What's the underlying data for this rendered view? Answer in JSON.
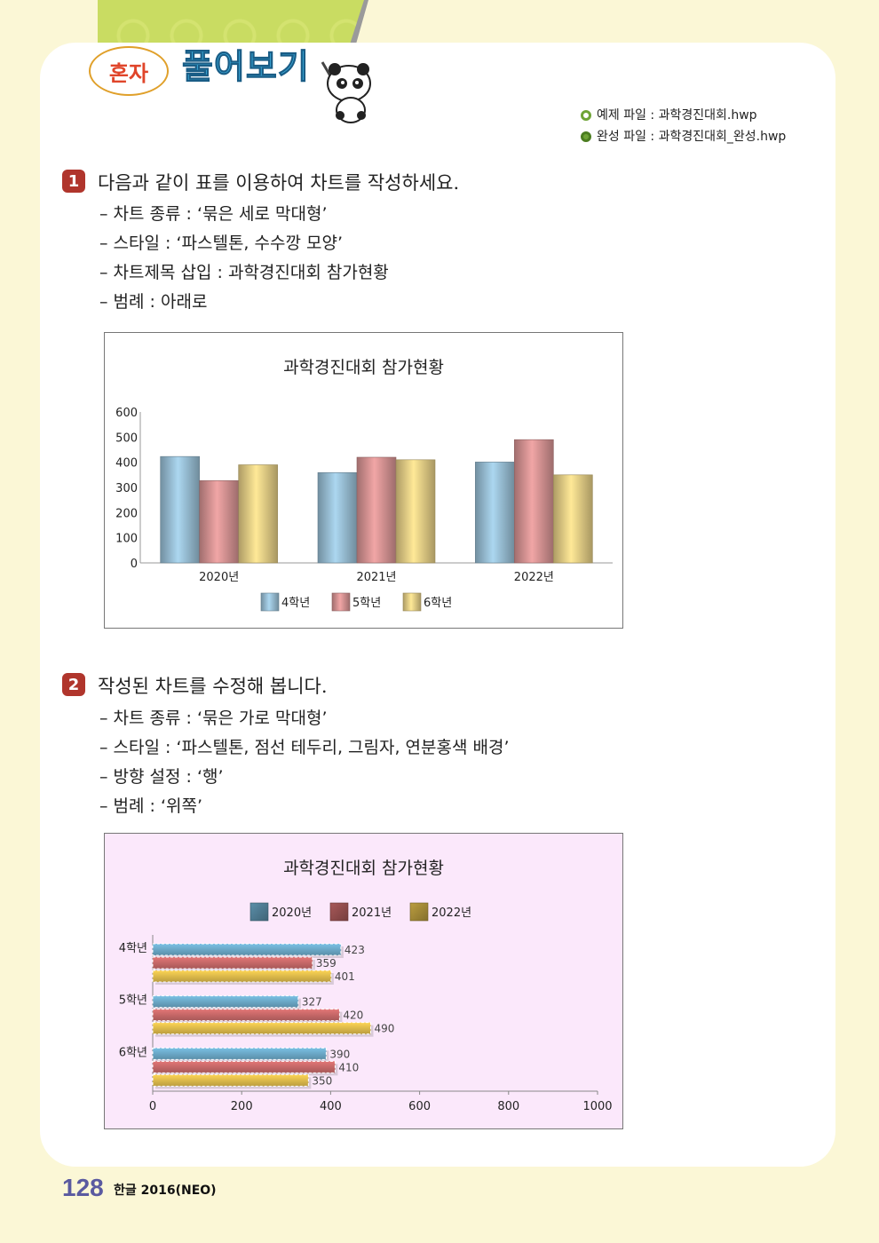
{
  "header": {
    "bubble": "혼자",
    "title": "풀어보기"
  },
  "files": [
    {
      "label": "예제 파일 : 과학경진대회.hwp",
      "icon": "circle-outline-icon"
    },
    {
      "label": "완성 파일 : 과학경진대회_완성.hwp",
      "icon": "circle-filled-icon"
    }
  ],
  "q1": {
    "number": "1",
    "text": "다음과 같이 표를 이용하여 차트를 작성하세요.",
    "items": [
      "– 차트 종류 : ‘묶은 세로 막대형’",
      "– 스타일 : ‘파스텔톤, 수수깡 모양’",
      "– 차트제목 삽입 : 과학경진대회 참가현황",
      "– 범례 : 아래로"
    ]
  },
  "q2": {
    "number": "2",
    "text": "작성된 차트를 수정해 봅니다.",
    "items": [
      "– 차트 종류 : ‘묶은 가로 막대형’",
      "– 스타일 : ‘파스텔톤, 점선 테두리, 그림자, 연분홍색 배경’",
      "– 방향 설정 : ‘행’",
      "– 범례 : ‘위쪽’"
    ]
  },
  "chart_data": [
    {
      "type": "bar",
      "orientation": "vertical",
      "title": "과학경진대회 참가현황",
      "categories": [
        "2020년",
        "2021년",
        "2022년"
      ],
      "series": [
        {
          "name": "4학년",
          "values": [
            423,
            359,
            401
          ],
          "color": "#8fb3c8"
        },
        {
          "name": "5학년",
          "values": [
            327,
            420,
            490
          ],
          "color": "#c98a8a"
        },
        {
          "name": "6학년",
          "values": [
            390,
            410,
            350
          ],
          "color": "#d8c27e"
        }
      ],
      "ylim": [
        0,
        600
      ],
      "yticks": [
        0,
        100,
        200,
        300,
        400,
        500,
        600
      ],
      "legend": "bottom"
    },
    {
      "type": "bar",
      "orientation": "horizontal",
      "title": "과학경진대회 참가현황",
      "categories": [
        "4학년",
        "5학년",
        "6학년"
      ],
      "series": [
        {
          "name": "2020년",
          "values": [
            423,
            327,
            390
          ],
          "color": "#6aa7c6"
        },
        {
          "name": "2021년",
          "values": [
            359,
            420,
            410
          ],
          "color": "#c56767"
        },
        {
          "name": "2022년",
          "values": [
            401,
            490,
            350
          ],
          "color": "#dcb94a"
        }
      ],
      "xlim": [
        0,
        1000
      ],
      "xticks": [
        0,
        200,
        400,
        600,
        800,
        1000
      ],
      "legend": "top",
      "background": "#fbe8fb"
    }
  ],
  "footer": {
    "page": "128",
    "book": "한글 2016(NEO)"
  }
}
